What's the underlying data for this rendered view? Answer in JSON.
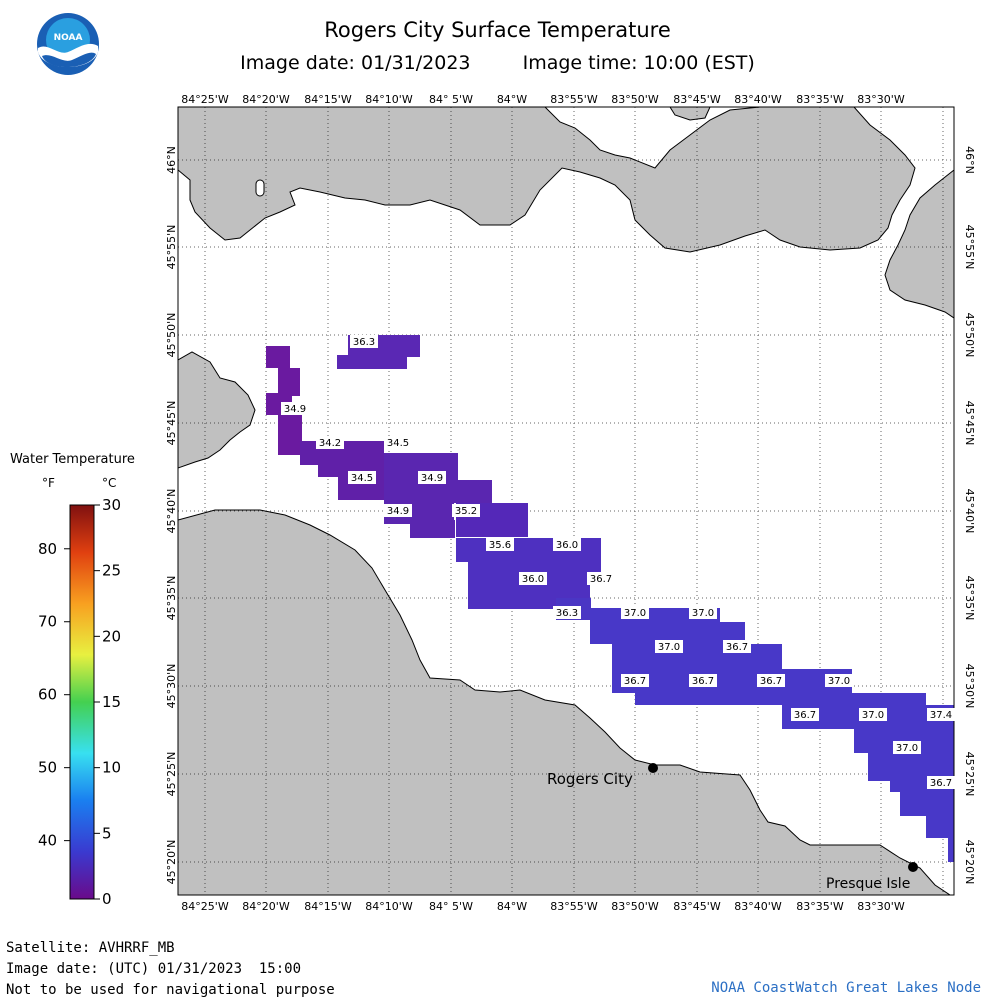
{
  "header": {
    "title": "Rogers City Surface Temperature",
    "image_date": "Image date: 01/31/2023",
    "image_time": "Image time: 10:00 (EST)"
  },
  "logo": {
    "text": "NOAA",
    "icon": "noaa-logo"
  },
  "map": {
    "lon_labels": [
      "84°25'W",
      "84°20'W",
      "84°15'W",
      "84°10'W",
      "84° 5'W",
      "84°W",
      "83°55'W",
      "83°50'W",
      "83°45'W",
      "83°40'W",
      "83°35'W",
      "83°30'W"
    ],
    "lat_labels": [
      "46°N",
      "45°55'N",
      "45°50'N",
      "45°45'N",
      "45°40'N",
      "45°35'N",
      "45°30'N",
      "45°25'N",
      "45°20'N"
    ],
    "land_color": "#c0c0c0",
    "water_color": "#ffffff",
    "places": [
      {
        "name": "Rogers City",
        "icon": "city-dot"
      },
      {
        "name": "Presque Isle",
        "icon": "city-dot"
      }
    ],
    "temperature_labels": [
      "36.3",
      "34.9",
      "34.2",
      "34.5",
      "34.5",
      "34.9",
      "34.9",
      "35.2",
      "35.6",
      "36.0",
      "36.0",
      "36.7",
      "36.3",
      "37.0",
      "37.0",
      "37.0",
      "36.7",
      "36.7",
      "36.7",
      "36.7",
      "37.0",
      "36.7",
      "37.0",
      "37.4",
      "37.0",
      "36.7"
    ]
  },
  "legend": {
    "title": "Water Temperature",
    "unit_f": "°F",
    "unit_c": "°C",
    "f_ticks": [
      "80",
      "70",
      "60",
      "50",
      "40"
    ],
    "c_ticks": [
      "30",
      "25",
      "20",
      "15",
      "10",
      "5",
      "0"
    ],
    "f_values": [
      80,
      70,
      60,
      50,
      40
    ],
    "c_values": [
      30,
      25,
      20,
      15,
      10,
      5,
      0
    ]
  },
  "footer": {
    "satellite": "Satellite: AVHRRF_MB",
    "utc_date": "Image date: (UTC) 01/31/2023  15:00",
    "disclaimer": "Not to be used for navigational purpose",
    "credit": "NOAA CoastWatch Great Lakes Node"
  }
}
